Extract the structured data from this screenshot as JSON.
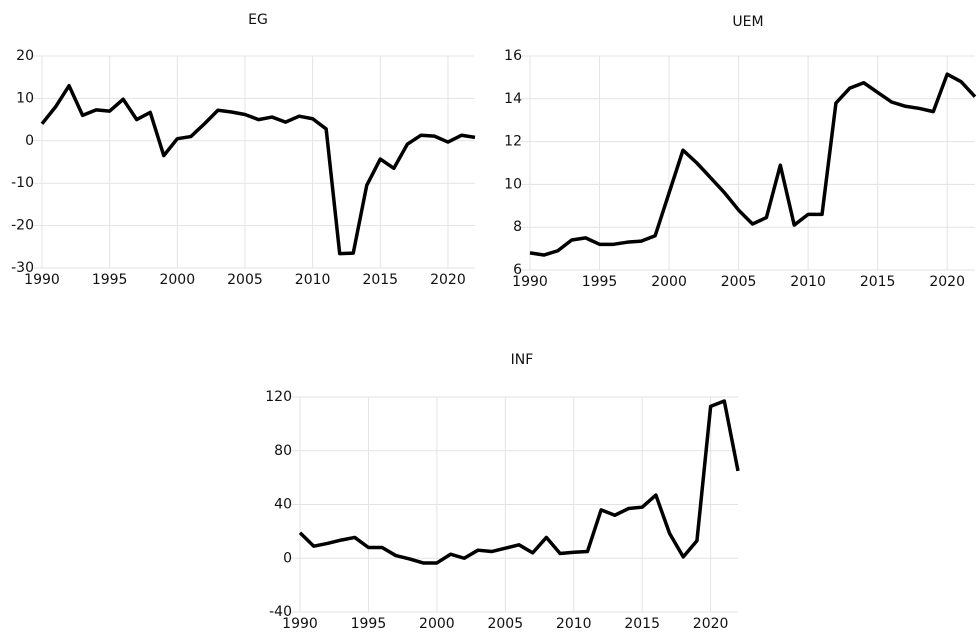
{
  "chart_data": [
    {
      "type": "line",
      "title": "EG",
      "x": [
        1990,
        1991,
        1992,
        1993,
        1994,
        1995,
        1996,
        1997,
        1998,
        1999,
        2000,
        2001,
        2002,
        2003,
        2004,
        2005,
        2006,
        2007,
        2008,
        2009,
        2010,
        2011,
        2012,
        2013,
        2014,
        2015,
        2016,
        2017,
        2018,
        2019,
        2020,
        2021,
        2022
      ],
      "series": [
        {
          "name": "EG",
          "color": "#000000",
          "values": [
            4,
            8,
            13,
            6,
            7.3,
            7,
            9.8,
            5,
            6.7,
            -3.5,
            0.5,
            1,
            4,
            7.2,
            6.8,
            6.2,
            5,
            5.6,
            4.4,
            5.8,
            5.2,
            2.8,
            -26.6,
            -26.5,
            -10.5,
            -4.3,
            -6.5,
            -0.8,
            1.3,
            1.1,
            -0.3,
            1.3,
            0.8
          ]
        }
      ],
      "xlim": [
        1990,
        2022
      ],
      "xticks": [
        1990,
        1995,
        2000,
        2005,
        2010,
        2015,
        2020
      ],
      "ylim": [
        -30,
        20
      ],
      "yticks": [
        -30,
        -20,
        -10,
        0,
        10,
        20
      ],
      "grid": true
    },
    {
      "type": "line",
      "title": "UEM",
      "x": [
        1990,
        1991,
        1992,
        1993,
        1994,
        1995,
        1996,
        1997,
        1998,
        1999,
        2000,
        2001,
        2002,
        2003,
        2004,
        2005,
        2006,
        2007,
        2008,
        2009,
        2010,
        2011,
        2012,
        2013,
        2014,
        2015,
        2016,
        2017,
        2018,
        2019,
        2020,
        2021,
        2022
      ],
      "series": [
        {
          "name": "UEM",
          "color": "#000000",
          "values": [
            6.8,
            6.7,
            6.9,
            7.4,
            7.5,
            7.2,
            7.2,
            7.3,
            7.35,
            7.6,
            9.6,
            11.6,
            11,
            10.3,
            9.6,
            8.8,
            8.15,
            8.45,
            10.9,
            8.1,
            8.6,
            8.6,
            13.8,
            14.5,
            14.75,
            14.3,
            13.85,
            13.65,
            13.55,
            13.4,
            15.15,
            14.8,
            14.1
          ]
        }
      ],
      "xlim": [
        1990,
        2022
      ],
      "xticks": [
        1990,
        1995,
        2000,
        2005,
        2010,
        2015,
        2020
      ],
      "ylim": [
        6,
        16
      ],
      "yticks": [
        6,
        8,
        10,
        12,
        14,
        16
      ],
      "grid": true
    },
    {
      "type": "line",
      "title": "INF",
      "x": [
        1990,
        1991,
        1992,
        1993,
        1994,
        1995,
        1996,
        1997,
        1998,
        1999,
        2000,
        2001,
        2002,
        2003,
        2004,
        2005,
        2006,
        2007,
        2008,
        2009,
        2010,
        2011,
        2012,
        2013,
        2014,
        2015,
        2016,
        2017,
        2018,
        2019,
        2020,
        2021,
        2022
      ],
      "series": [
        {
          "name": "INF",
          "color": "#000000",
          "values": [
            19,
            9,
            11,
            13.5,
            15.5,
            8,
            8,
            2,
            -0.5,
            -3.5,
            -3.5,
            3,
            0,
            6,
            5,
            7.5,
            10,
            4,
            15.5,
            3.5,
            4.5,
            5,
            36,
            32,
            37,
            38,
            47,
            18.5,
            1,
            13,
            113,
            117,
            65
          ]
        }
      ],
      "xlim": [
        1990,
        2022
      ],
      "xticks": [
        1990,
        1995,
        2000,
        2005,
        2010,
        2015,
        2020
      ],
      "ylim": [
        -40,
        120
      ],
      "yticks": [
        -40,
        0,
        40,
        80,
        120
      ],
      "grid": true
    }
  ]
}
